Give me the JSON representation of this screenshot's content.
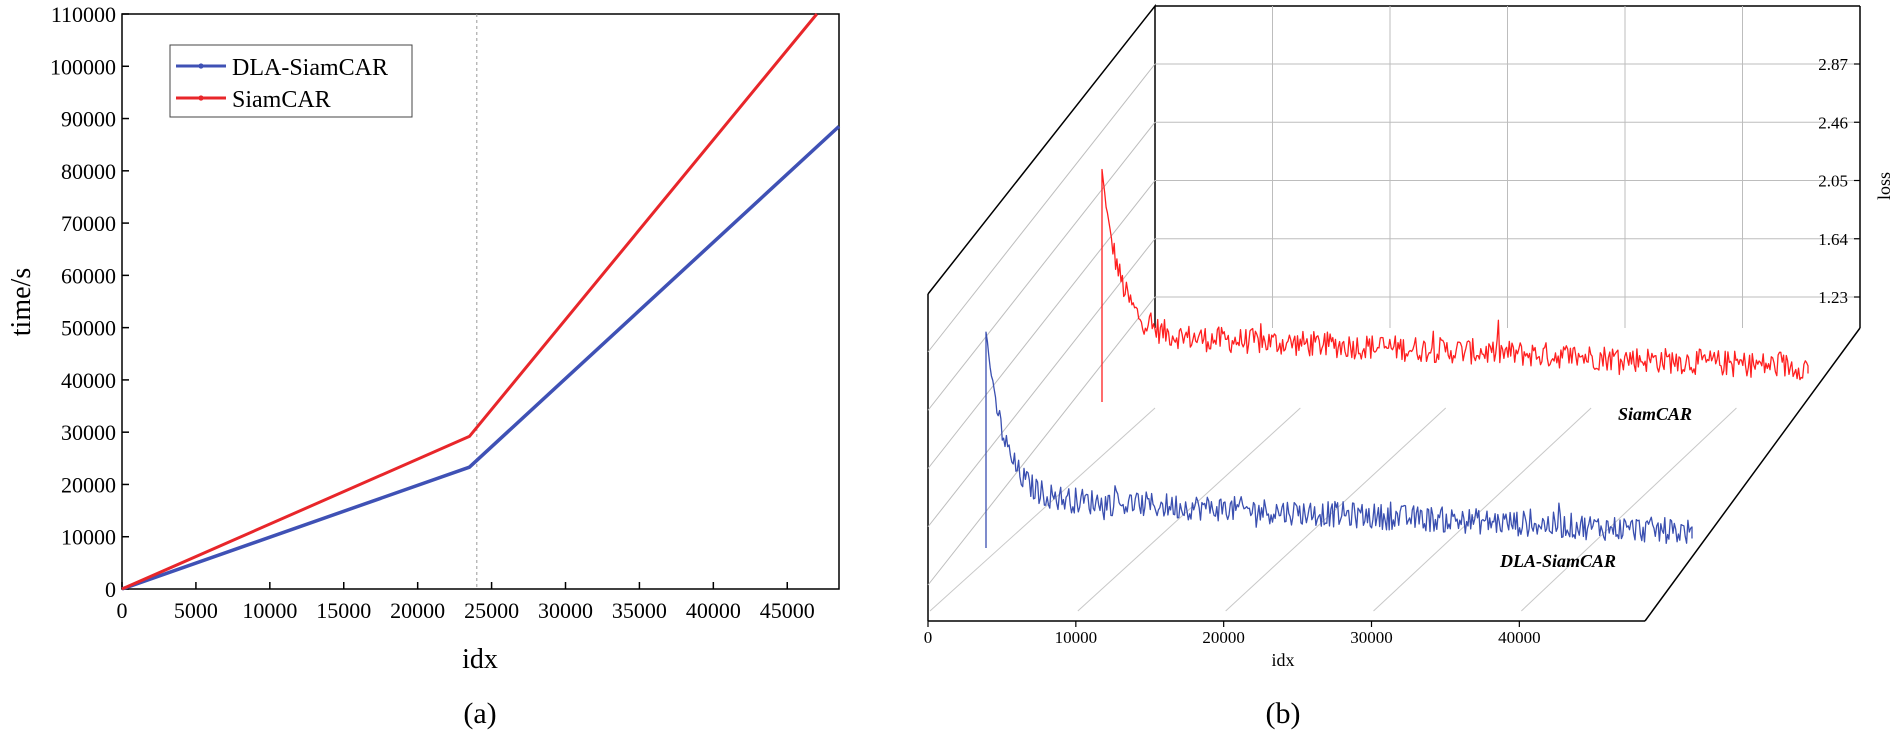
{
  "chart_data": [
    {
      "type": "line",
      "panel_label": "(a)",
      "xlabel": "idx",
      "ylabel": "time/s",
      "xlim": [
        0,
        48500
      ],
      "ylim": [
        0,
        110000
      ],
      "x_ticks": [
        "0",
        "5000",
        "10000",
        "15000",
        "20000",
        "25000",
        "30000",
        "35000",
        "40000",
        "45000"
      ],
      "x_tick_values": [
        0,
        5000,
        10000,
        15000,
        20000,
        25000,
        30000,
        35000,
        40000,
        45000
      ],
      "y_ticks": [
        "0",
        "10000",
        "20000",
        "30000",
        "40000",
        "50000",
        "60000",
        "70000",
        "80000",
        "90000",
        "100000",
        "110000"
      ],
      "y_tick_values": [
        0,
        10000,
        20000,
        30000,
        40000,
        50000,
        60000,
        70000,
        80000,
        90000,
        100000,
        110000
      ],
      "vline_x": 24000,
      "legend_position": "top-left",
      "series": [
        {
          "name": "DLA-SiamCAR",
          "color": "#3f51b5",
          "x": [
            0,
            23500,
            48500
          ],
          "y": [
            0,
            23300,
            88500
          ]
        },
        {
          "name": "SiamCAR",
          "color": "#e8262a",
          "x": [
            0,
            23500,
            47000
          ],
          "y": [
            0,
            29200,
            110000
          ]
        }
      ]
    },
    {
      "type": "line",
      "subtype": "3d-waterfall",
      "panel_label": "(b)",
      "xlabel": "idx",
      "zlabel": "loss",
      "xlim": [
        0,
        48500
      ],
      "x_ticks": [
        "0",
        "10000",
        "20000",
        "30000",
        "40000"
      ],
      "x_tick_values": [
        0,
        10000,
        20000,
        30000,
        40000
      ],
      "z_ticks": [
        "1.23",
        "1.64",
        "2.05",
        "2.46",
        "2.87"
      ],
      "z_tick_values": [
        1.23,
        1.64,
        2.05,
        2.46,
        2.87
      ],
      "series": [
        {
          "name": "SiamCAR",
          "label": "SiamCAR",
          "color": "#ff1f1f",
          "x_range": [
            0,
            47000
          ],
          "initial_peak": 1.96,
          "settled_level": 0.7,
          "final_level": 0.45,
          "noise_amplitude": 0.1
        },
        {
          "name": "DLA-SiamCAR",
          "label": "DLA-SiamCAR",
          "color": "#3a4fb0",
          "x_range": [
            0,
            47000
          ],
          "initial_peak": 2.0,
          "settled_level": 0.72,
          "final_level": 0.45,
          "noise_amplitude": 0.1
        }
      ]
    }
  ]
}
